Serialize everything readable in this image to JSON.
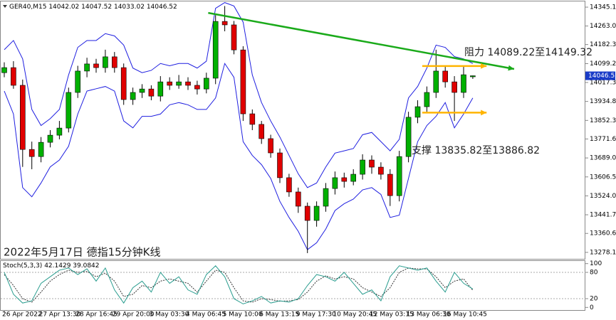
{
  "chart_data": [
    {
      "type": "candlestick",
      "title": "GER40,M15",
      "categories": [
        "26 Apr 2022",
        null,
        null,
        null,
        "27 Apr 13:30",
        null,
        null,
        null,
        "28 Apr 16:45",
        null,
        null,
        null,
        "29 Apr 20:00",
        null,
        null,
        null,
        "3 May 03:30",
        null,
        null,
        null,
        "4 May 06:45",
        null,
        null,
        null,
        "5 May 10:00",
        null,
        null,
        null,
        "6 May 13:15",
        null,
        null,
        null,
        "9 May 17:30",
        null,
        null,
        null,
        "10 May 20:45",
        null,
        null,
        null,
        "12 May 03:15",
        null,
        null,
        null,
        "13 May 06:30",
        null,
        null,
        null,
        "16 May 10:45",
        null,
        null,
        null
      ],
      "open": [
        14060,
        14082,
        14005,
        13726,
        13695,
        13757,
        13788,
        13819,
        13974,
        14067,
        14098,
        14082,
        14129,
        14082,
        13943,
        13974,
        13989,
        13958,
        14020,
        14005,
        14020,
        14005,
        13989,
        14036,
        14283,
        14268,
        14159,
        13881,
        13835,
        13773,
        13711,
        13603,
        13541,
        13479,
        13417,
        13479,
        13556,
        13603,
        13587,
        13618,
        13680,
        13649,
        13618,
        13525,
        13695,
        13866,
        13912,
        13974,
        14067,
        14020,
        13974,
        14042.02
      ],
      "high": [
        14105,
        14110,
        14030,
        13760,
        13780,
        13810,
        13850,
        13995,
        14090,
        14125,
        14120,
        14160,
        14150,
        14100,
        13995,
        14010,
        14005,
        14045,
        14040,
        14050,
        14040,
        14025,
        14060,
        14310,
        14350,
        14285,
        14175,
        13900,
        13850,
        13790,
        13730,
        13620,
        13560,
        13495,
        13500,
        13580,
        13630,
        13625,
        13640,
        13705,
        13700,
        13670,
        13640,
        13720,
        13890,
        13940,
        14000,
        14160,
        14090,
        14045,
        14090,
        14047.52
      ],
      "low": [
        14040,
        13990,
        13650,
        13640,
        13670,
        13735,
        13770,
        13800,
        13950,
        14040,
        14060,
        14060,
        14060,
        13920,
        13920,
        13950,
        13940,
        13935,
        13985,
        13990,
        13985,
        13965,
        13970,
        14010,
        14240,
        14140,
        13850,
        13810,
        13750,
        13690,
        13580,
        13520,
        13450,
        13275,
        13390,
        13455,
        13530,
        13560,
        13570,
        13595,
        13620,
        13595,
        13480,
        13500,
        13670,
        13840,
        13890,
        13950,
        13995,
        13850,
        13950,
        14033.02
      ],
      "close": [
        14082,
        14005,
        13726,
        13695,
        13757,
        13788,
        13819,
        13974,
        14067,
        14098,
        14082,
        14129,
        14082,
        13943,
        13974,
        13989,
        13958,
        14020,
        14005,
        14020,
        14005,
        13989,
        14036,
        14283,
        14268,
        14159,
        13881,
        13835,
        13773,
        13711,
        13603,
        13541,
        13479,
        13417,
        13479,
        13556,
        13603,
        13587,
        13618,
        13680,
        13649,
        13618,
        13525,
        13695,
        13866,
        13912,
        13974,
        14067,
        14020,
        13974,
        14051,
        14046.52
      ],
      "up_color": "#00b000",
      "down_color": "#e00000",
      "upper_band": {
        "color": "#1f1fe0",
        "values": [
          14160,
          14200,
          14120,
          13900,
          13830,
          13860,
          13900,
          14050,
          14170,
          14200,
          14200,
          14230,
          14220,
          14180,
          14080,
          14060,
          14070,
          14100,
          14090,
          14100,
          14100,
          14080,
          14110,
          14340,
          14365,
          14350,
          14280,
          14050,
          13930,
          13850,
          13780,
          13700,
          13620,
          13560,
          13580,
          13650,
          13710,
          13720,
          13730,
          13790,
          13800,
          13760,
          13720,
          13770,
          13950,
          14000,
          14080,
          14180,
          14170,
          14130,
          14120,
          14100
        ]
      },
      "lower_band": {
        "color": "#1f1fe0",
        "values": [
          13980,
          13880,
          13560,
          13520,
          13580,
          13650,
          13680,
          13740,
          13880,
          13980,
          13990,
          14000,
          13980,
          13850,
          13820,
          13870,
          13870,
          13880,
          13920,
          13930,
          13920,
          13900,
          13900,
          13950,
          14100,
          14040,
          13760,
          13700,
          13660,
          13600,
          13500,
          13430,
          13370,
          13290,
          13320,
          13380,
          13460,
          13490,
          13510,
          13550,
          13560,
          13530,
          13430,
          13440,
          13600,
          13760,
          13830,
          13870,
          13930,
          13820,
          13880,
          13950
        ]
      },
      "trendlines": [
        {
          "color": "#1aaa1a",
          "x": [
            22.2,
            55.5
          ],
          "y": [
            14320,
            14076
          ]
        },
        {
          "color": "#ffb400",
          "x": [
            45.5,
            52.5
          ],
          "y": [
            14089,
            14089
          ]
        },
        {
          "color": "#ffb400",
          "x": [
            45.5,
            52.5
          ],
          "y": [
            13886,
            13886
          ]
        }
      ],
      "ylim": [
        13250,
        14370
      ],
      "yticks": [
        {
          "value": 14345.1,
          "label": "14345.10"
        },
        14263.05,
        14182.35,
        14099.25,
        14017.35,
        13934.85,
        13852.35,
        {
          "value": 13771.6,
          "label": "13771.60"
        },
        {
          "value": 13689,
          "label": "13689.00"
        },
        {
          "value": 13606.5,
          "label": "13606.50"
        },
        {
          "value": 13524,
          "label": "13524.00"
        },
        13441.75,
        13360.65,
        13278.15
      ],
      "annotations": [
        "阻力 14089.22至14149.32",
        "支撑 13835.82至13886.82",
        "2022年5月17日 德指15分钟K线"
      ]
    },
    {
      "type": "line",
      "title": "Stoch(5,3,3)",
      "main": {
        "color": "#2a9d8f",
        "values": [
          80,
          30,
          10,
          15,
          55,
          70,
          85,
          90,
          75,
          88,
          60,
          90,
          40,
          10,
          45,
          60,
          35,
          80,
          55,
          70,
          40,
          30,
          75,
          95,
          70,
          20,
          8,
          15,
          25,
          10,
          15,
          12,
          20,
          50,
          75,
          70,
          60,
          80,
          55,
          30,
          40,
          15,
          70,
          95,
          90,
          85,
          90,
          60,
          35,
          80,
          55,
          42.1429
        ]
      },
      "signal": {
        "color": "#333333",
        "values": [
          75,
          50,
          20,
          12,
          35,
          60,
          75,
          85,
          80,
          82,
          70,
          78,
          60,
          25,
          30,
          50,
          45,
          60,
          65,
          60,
          55,
          35,
          60,
          85,
          80,
          45,
          15,
          12,
          20,
          18,
          14,
          15,
          18,
          35,
          60,
          72,
          65,
          70,
          65,
          45,
          35,
          25,
          45,
          80,
          90,
          88,
          88,
          70,
          45,
          60,
          65,
          39.0842
        ]
      },
      "ylim": [
        -6,
        106
      ],
      "yticks": [
        0,
        20,
        80,
        100
      ]
    }
  ]
}
